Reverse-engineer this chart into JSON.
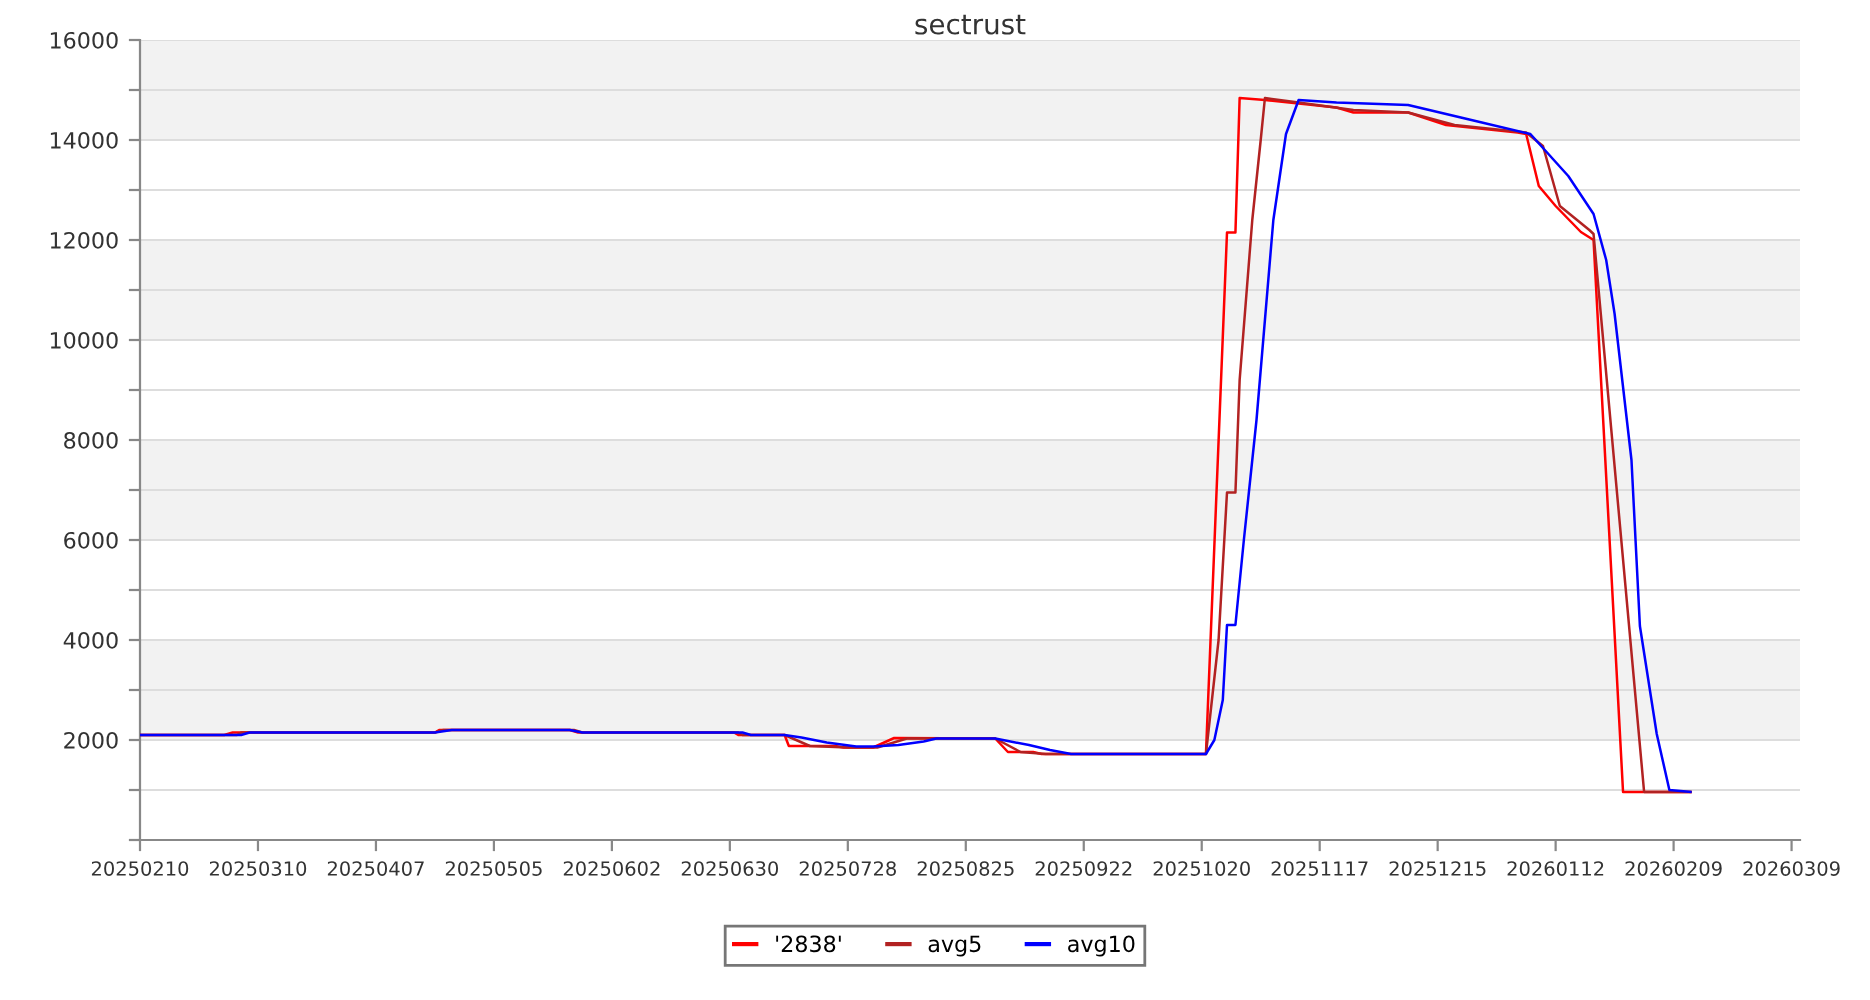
{
  "chart_data": {
    "type": "line",
    "title": "sectrust",
    "xlim": [
      "2025-02-10",
      "2026-03-11"
    ],
    "xticks": [
      {
        "value": "2025-02-10",
        "label": "20250210"
      },
      {
        "value": "2025-03-10",
        "label": "20250310"
      },
      {
        "value": "2025-04-07",
        "label": "20250407"
      },
      {
        "value": "2025-05-05",
        "label": "20250505"
      },
      {
        "value": "2025-06-02",
        "label": "20250602"
      },
      {
        "value": "2025-06-30",
        "label": "20250630"
      },
      {
        "value": "2025-07-28",
        "label": "20250728"
      },
      {
        "value": "2025-08-25",
        "label": "20250825"
      },
      {
        "value": "2025-09-22",
        "label": "20250922"
      },
      {
        "value": "2025-10-20",
        "label": "20251020"
      },
      {
        "value": "2025-11-17",
        "label": "20251117"
      },
      {
        "value": "2025-12-15",
        "label": "20251215"
      },
      {
        "value": "2026-01-12",
        "label": "20260112"
      },
      {
        "value": "2026-02-09",
        "label": "20260209"
      },
      {
        "value": "2026-03-09",
        "label": "20260309"
      }
    ],
    "ylim": [
      0,
      16000
    ],
    "yticks": [
      {
        "value": 0,
        "label": null
      },
      {
        "value": 1000,
        "label": null
      },
      2000,
      {
        "value": 3000,
        "label": null
      },
      4000,
      {
        "value": 5000,
        "label": null
      },
      6000,
      {
        "value": 7000,
        "label": null
      },
      8000,
      {
        "value": 9000,
        "label": null
      },
      10000,
      {
        "value": 11000,
        "label": null
      },
      12000,
      {
        "value": 13000,
        "label": null
      },
      14000,
      {
        "value": 15000,
        "label": null
      },
      16000
    ],
    "grid": "y",
    "legend": "bottom",
    "marker": "none",
    "line_style": "solid",
    "series": [
      {
        "name": "'2838'",
        "color": "#ff0000",
        "x": [
          "2025-02-10",
          "2025-03-02",
          "2025-03-04",
          "2025-04-21",
          "2025-04-22",
          "2025-05-23",
          "2025-05-25",
          "2025-07-01",
          "2025-07-02",
          "2025-07-13",
          "2025-07-14",
          "2025-07-25",
          "2025-07-27",
          "2025-08-03",
          "2025-08-08",
          "2025-09-01",
          "2025-09-04",
          "2025-09-10",
          "2025-09-12",
          "2025-10-21",
          "2025-10-26",
          "2025-10-28",
          "2025-10-29",
          "2025-11-04",
          "2025-11-21",
          "2025-11-25",
          "2025-12-08",
          "2025-12-17",
          "2026-01-03",
          "2026-01-05",
          "2026-01-08",
          "2026-01-12",
          "2026-01-18",
          "2026-01-21",
          "2026-01-28",
          "2026-02-13"
        ],
        "values": [
          2100,
          2100,
          2150,
          2150,
          2200,
          2200,
          2150,
          2150,
          2100,
          2100,
          1880,
          1880,
          1850,
          1850,
          2040,
          2030,
          1760,
          1760,
          1720,
          1720,
          12150,
          12150,
          14840,
          14800,
          14650,
          14550,
          14550,
          14300,
          14150,
          14120,
          13080,
          12680,
          12160,
          12000,
          960,
          960
        ]
      },
      {
        "name": "avg5",
        "color": "#b22222",
        "x": [
          "2025-02-10",
          "2025-03-05",
          "2025-03-06",
          "2025-04-21",
          "2025-04-23",
          "2025-05-24",
          "2025-05-26",
          "2025-07-02",
          "2025-07-03",
          "2025-07-13",
          "2025-07-19",
          "2025-07-28",
          "2025-08-04",
          "2025-08-11",
          "2025-09-01",
          "2025-09-07",
          "2025-09-13",
          "2025-10-21",
          "2025-10-24",
          "2025-10-26",
          "2025-10-28",
          "2025-10-29",
          "2025-11-01",
          "2025-11-03",
          "2025-11-04",
          "2025-11-12",
          "2025-11-25",
          "2025-12-08",
          "2025-12-19",
          "2026-01-05",
          "2026-01-09",
          "2026-01-13",
          "2026-01-20",
          "2026-01-21",
          "2026-02-02",
          "2026-02-13"
        ],
        "values": [
          2100,
          2100,
          2150,
          2150,
          2200,
          2200,
          2150,
          2150,
          2100,
          2100,
          1880,
          1850,
          1850,
          2030,
          2030,
          1760,
          1720,
          1720,
          4000,
          6950,
          6950,
          9200,
          12400,
          14000,
          14840,
          14750,
          14600,
          14550,
          14300,
          14150,
          13880,
          12680,
          12200,
          12120,
          960,
          960
        ]
      },
      {
        "name": "avg10",
        "color": "#0000ff",
        "x": [
          "2025-02-10",
          "2025-03-06",
          "2025-03-08",
          "2025-04-21",
          "2025-04-25",
          "2025-05-23",
          "2025-05-26",
          "2025-07-03",
          "2025-07-05",
          "2025-07-13",
          "2025-07-17",
          "2025-07-23",
          "2025-07-30",
          "2025-08-03",
          "2025-08-09",
          "2025-08-15",
          "2025-08-18",
          "2025-09-01",
          "2025-09-04",
          "2025-09-09",
          "2025-09-14",
          "2025-09-19",
          "2025-10-21",
          "2025-10-23",
          "2025-10-25",
          "2025-10-26",
          "2025-10-28",
          "2025-10-30",
          "2025-11-02",
          "2025-11-06",
          "2025-11-09",
          "2025-11-12",
          "2025-11-21",
          "2025-12-08",
          "2025-12-23",
          "2026-01-06",
          "2026-01-15",
          "2026-01-21",
          "2026-01-24",
          "2026-01-26",
          "2026-01-30",
          "2026-02-01",
          "2026-02-05",
          "2026-02-08",
          "2026-02-13"
        ],
        "values": [
          2100,
          2100,
          2150,
          2150,
          2200,
          2200,
          2150,
          2150,
          2100,
          2100,
          2050,
          1950,
          1870,
          1870,
          1900,
          1970,
          2030,
          2030,
          1980,
          1900,
          1800,
          1720,
          1720,
          2000,
          2800,
          4300,
          4300,
          6000,
          8400,
          12400,
          14120,
          14800,
          14750,
          14700,
          14400,
          14120,
          13280,
          12520,
          11600,
          10520,
          7600,
          4280,
          2120,
          1000,
          960
        ]
      }
    ]
  }
}
